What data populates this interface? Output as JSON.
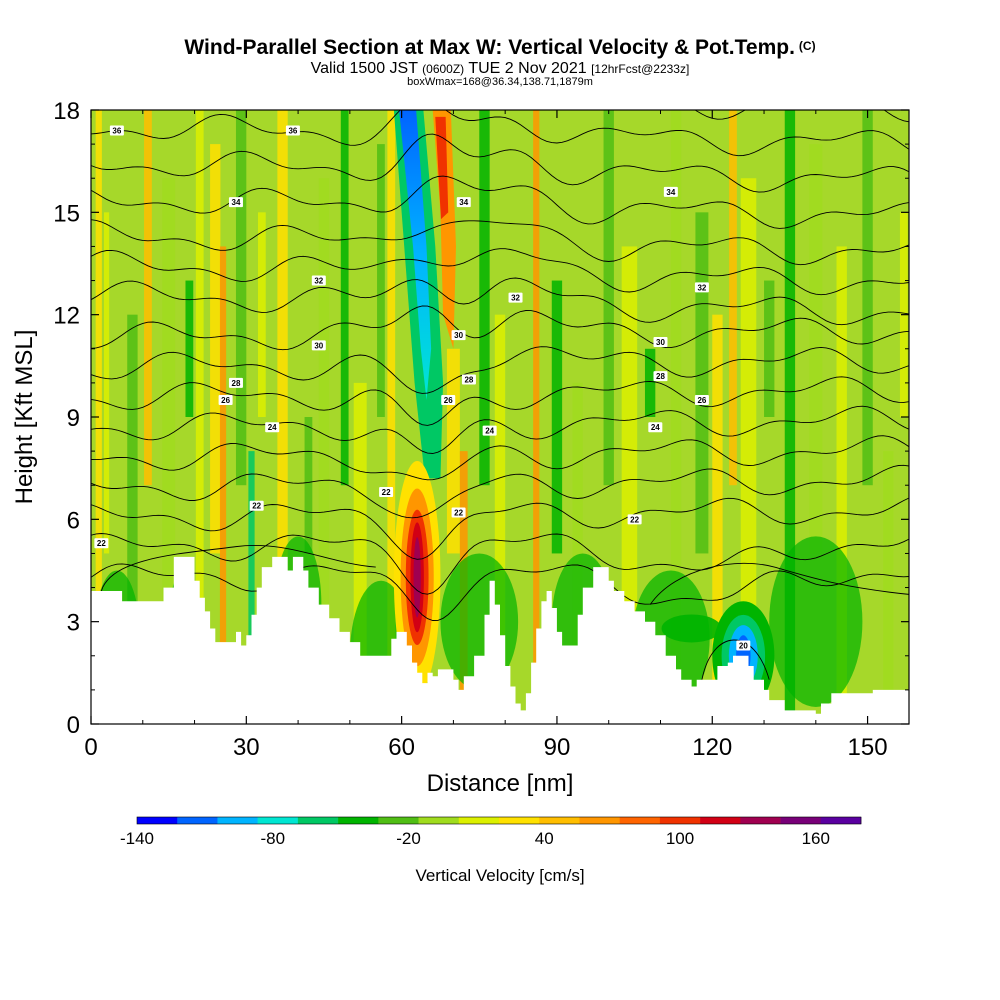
{
  "title": {
    "main": "Wind-Parallel Section at Max W: Vertical Velocity & Pot.Temp.",
    "copyright": "(C)",
    "valid_prefix": "Valid 1500 JST",
    "valid_utc": "(0600Z)",
    "valid_date": "TUE 2 Nov 2021",
    "forecast": "[12hrFcst@2233z]",
    "boxwmax": "boxWmax=168@36.34,138.71,1879m"
  },
  "colors": {
    "bar": [
      "#0000ff",
      "#0064ff",
      "#00b4ff",
      "#00e6d2",
      "#00c864",
      "#00b400",
      "#50be14",
      "#a0dc1e",
      "#dcf000",
      "#ffe100",
      "#ffbe00",
      "#ff9600",
      "#ff6400",
      "#f03200",
      "#d20014",
      "#a00050",
      "#780078",
      "#5a00a0"
    ],
    "background_field": "#a6d82a",
    "terrain": "#ffffff",
    "contour": "#000000"
  },
  "chart_data": {
    "type": "heatmap",
    "xlabel": "Distance [nm]",
    "ylabel": "Height [Kft MSL]",
    "xlim": [
      0,
      158
    ],
    "ylim": [
      0,
      18
    ],
    "xticks": [
      0,
      30,
      60,
      90,
      120,
      150
    ],
    "yticks": [
      0,
      3,
      6,
      9,
      12,
      15,
      18
    ],
    "colorbar": {
      "label": "Vertical Velocity [cm/s]",
      "min": -140,
      "max": 180,
      "step": 20,
      "tick_labels": [
        -140,
        -80,
        -20,
        40,
        100,
        160
      ]
    },
    "contour_variable": "potential temperature",
    "contour_labels": [
      {
        "x": 5,
        "y": 17.4,
        "text": "36"
      },
      {
        "x": 39,
        "y": 17.4,
        "text": "36"
      },
      {
        "x": 28,
        "y": 15.3,
        "text": "34"
      },
      {
        "x": 72,
        "y": 15.3,
        "text": "34"
      },
      {
        "x": 112,
        "y": 15.6,
        "text": "34"
      },
      {
        "x": 44,
        "y": 13.0,
        "text": "32"
      },
      {
        "x": 82,
        "y": 12.5,
        "text": "32"
      },
      {
        "x": 118,
        "y": 12.8,
        "text": "32"
      },
      {
        "x": 44,
        "y": 11.1,
        "text": "30"
      },
      {
        "x": 71,
        "y": 11.4,
        "text": "30"
      },
      {
        "x": 110,
        "y": 11.2,
        "text": "30"
      },
      {
        "x": 28,
        "y": 10.0,
        "text": "28"
      },
      {
        "x": 73,
        "y": 10.1,
        "text": "28"
      },
      {
        "x": 110,
        "y": 10.2,
        "text": "28"
      },
      {
        "x": 26,
        "y": 9.5,
        "text": "26"
      },
      {
        "x": 69,
        "y": 9.5,
        "text": "26"
      },
      {
        "x": 118,
        "y": 9.5,
        "text": "26"
      },
      {
        "x": 35,
        "y": 8.7,
        "text": "24"
      },
      {
        "x": 77,
        "y": 8.6,
        "text": "24"
      },
      {
        "x": 109,
        "y": 8.7,
        "text": "24"
      },
      {
        "x": 57,
        "y": 6.8,
        "text": "22"
      },
      {
        "x": 32,
        "y": 6.4,
        "text": "22"
      },
      {
        "x": 71,
        "y": 6.2,
        "text": "22"
      },
      {
        "x": 105,
        "y": 6.0,
        "text": "22"
      },
      {
        "x": 2,
        "y": 5.3,
        "text": "22"
      },
      {
        "x": 126,
        "y": 2.3,
        "text": "20"
      }
    ],
    "features": [
      {
        "type": "downdraft",
        "x_top": 61,
        "x_bottom": 67,
        "y_range": [
          7,
          18
        ],
        "min_w": -140
      },
      {
        "type": "updraft",
        "x": 63,
        "y_range": [
          1.5,
          7.5
        ],
        "max_w": 168
      },
      {
        "type": "downdraft",
        "x": 127,
        "y_range": [
          1,
          3
        ],
        "min_w": -120
      }
    ]
  }
}
